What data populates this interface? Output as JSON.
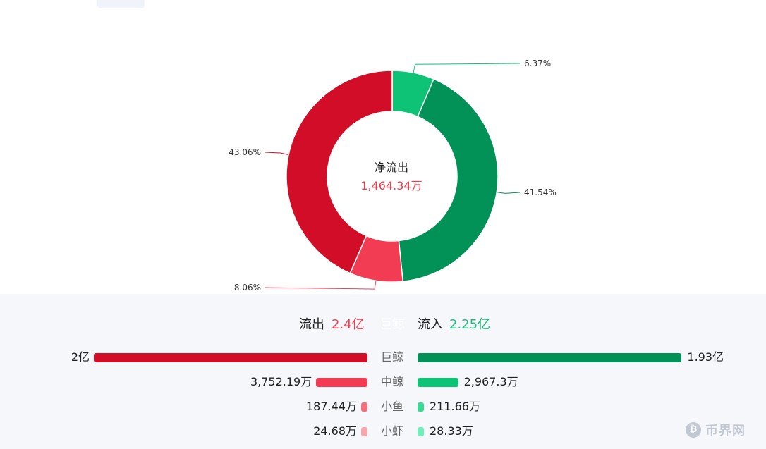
{
  "chart_data": {
    "type": "pie",
    "slices": [
      {
        "label": "6.37%",
        "value": 6.37,
        "color": "#0fc376"
      },
      {
        "label": "41.54%",
        "value": 41.54,
        "color": "#029157"
      },
      {
        "label": "8.06%",
        "value": 8.06,
        "color": "#f23c54"
      },
      {
        "label": "43.06%",
        "value": 43.06,
        "color": "#d20d28"
      }
    ],
    "center_title": "净流出",
    "center_value": "1,464.34万"
  },
  "summary": {
    "outflow_label": "流出",
    "outflow_value": "2.4亿",
    "middle_label": "巨鲸",
    "inflow_label": "流入",
    "inflow_value": "2.25亿"
  },
  "rows": [
    {
      "category": "巨鲸",
      "out_text": "2亿",
      "out_amount": 20000,
      "out_color": "#d20d28",
      "in_text": "1.93亿",
      "in_amount": 19300,
      "in_color": "#029157"
    },
    {
      "category": "中鲸",
      "out_text": "3,752.19万",
      "out_amount": 3752.19,
      "out_color": "#f23c54",
      "in_text": "2,967.3万",
      "in_amount": 2967.3,
      "in_color": "#0fc376"
    },
    {
      "category": "小鱼",
      "out_text": "187.44万",
      "out_amount": 187.44,
      "out_color": "#f5707e",
      "in_text": "211.66万",
      "in_amount": 211.66,
      "in_color": "#3ad993"
    },
    {
      "category": "小虾",
      "out_text": "24.68万",
      "out_amount": 24.68,
      "out_color": "#f7a6ad",
      "in_text": "28.33万",
      "in_amount": 28.33,
      "in_color": "#6ff0bb"
    }
  ],
  "watermark": {
    "icon": "bitcoin-coin-icon",
    "text": "币界网"
  }
}
